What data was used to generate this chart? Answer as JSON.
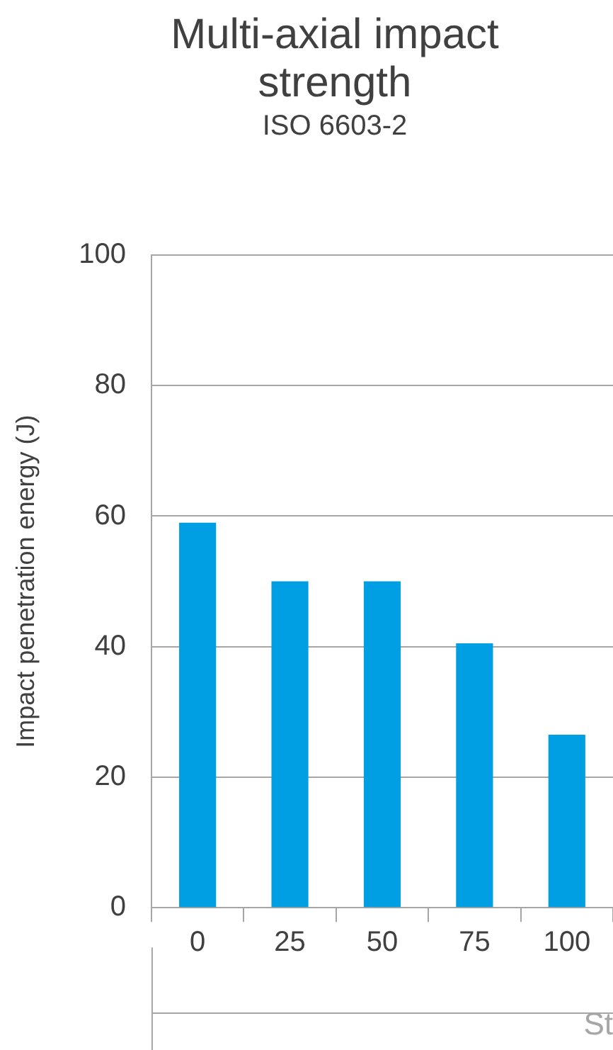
{
  "chart_data": {
    "type": "bar",
    "title": "Multi-axial impact strength",
    "subtitle": "ISO 6603-2",
    "ylabel": "Impact penetration energy (J)",
    "xlabel": "St",
    "categories": [
      "0",
      "25",
      "50",
      "75",
      "100"
    ],
    "values": [
      59,
      50,
      50,
      40.5,
      26.5
    ],
    "color": "#009fe3",
    "ylim": [
      0,
      100
    ],
    "yticks": [
      0,
      20,
      40,
      60,
      80,
      100
    ],
    "grid": "y",
    "legend": false
  }
}
